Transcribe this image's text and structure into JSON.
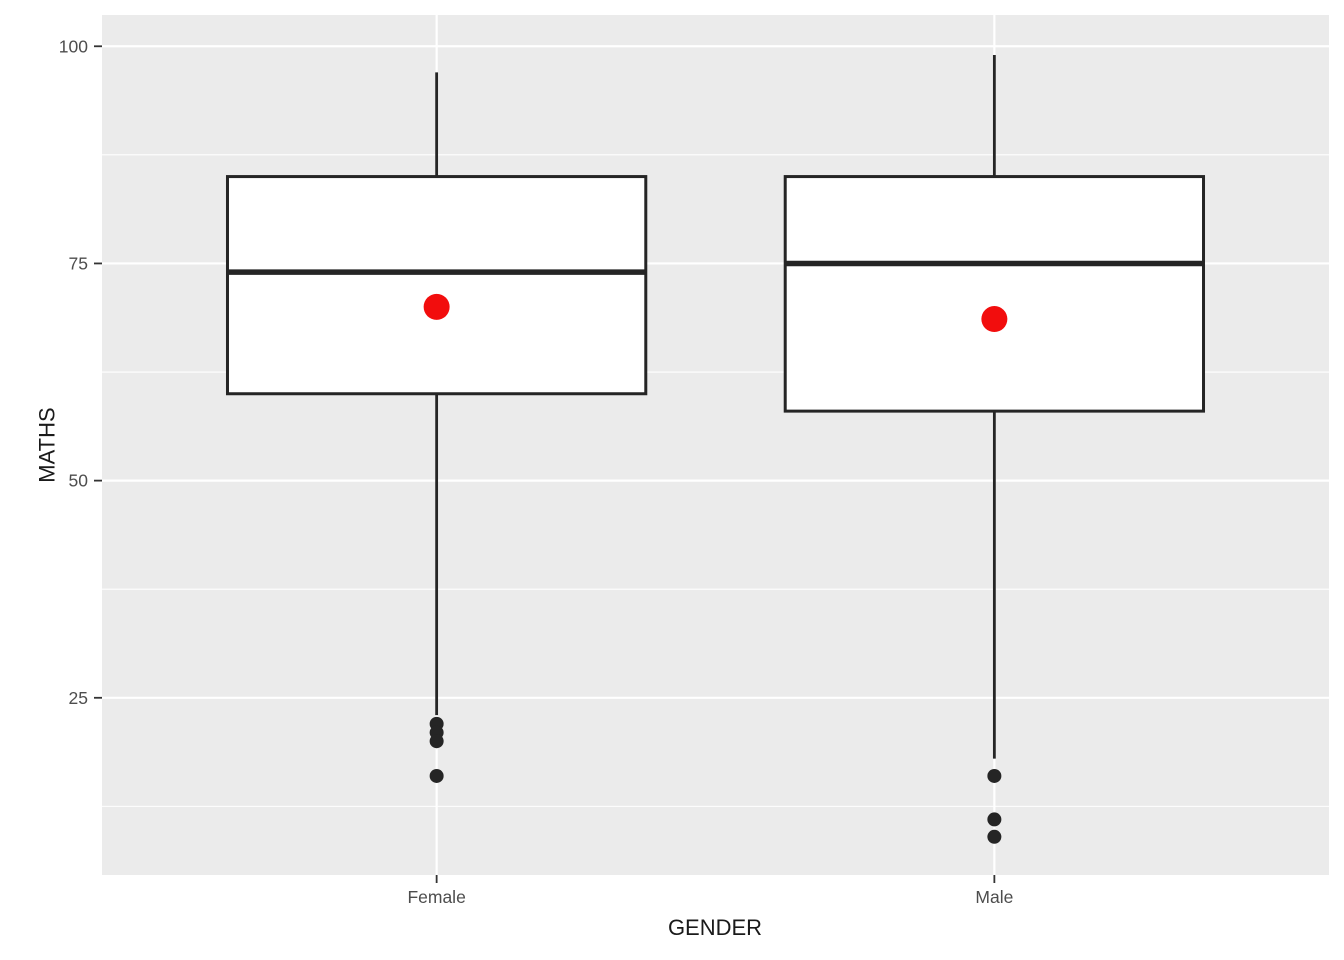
{
  "chart_data": {
    "type": "boxplot",
    "title": "",
    "xlabel": "GENDER",
    "ylabel": "MATHS",
    "categories": [
      "Female",
      "Male"
    ],
    "y_ticks": [
      25,
      50,
      75,
      100
    ],
    "y_minor_gridlines": [
      12.5,
      37.5,
      62.5,
      87.5
    ],
    "ylim": [
      4.6,
      103.6
    ],
    "grid": true,
    "legend_position": "none",
    "series": [
      {
        "category": "Female",
        "whisker_low": 23,
        "q1": 60,
        "median": 74,
        "q3": 85,
        "whisker_high": 97,
        "mean": 70,
        "outliers": [
          22,
          21,
          20,
          16
        ]
      },
      {
        "category": "Male",
        "whisker_low": 18,
        "q1": 58,
        "median": 75,
        "q3": 85,
        "whisker_high": 99,
        "mean": 68.6,
        "outliers": [
          16,
          11,
          9
        ]
      }
    ],
    "colors": {
      "panel_background": "#EBEBEB",
      "gridline": "#FFFFFF",
      "box_fill": "#FFFFFF",
      "box_stroke": "#252525",
      "outlier_color": "#252525",
      "mean_point_color": "#F20D0D",
      "tick_mark_color": "#333333",
      "tick_label_color": "#4D4D4D",
      "axis_title_color": "#1A1A1A"
    }
  }
}
